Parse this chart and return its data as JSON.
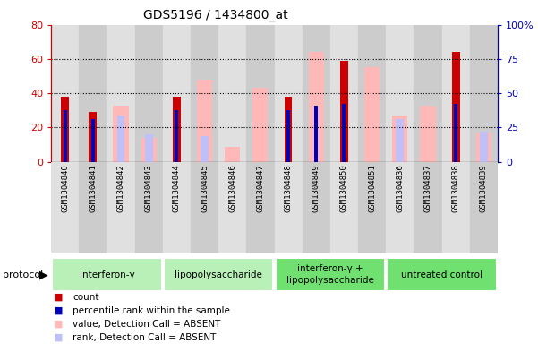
{
  "title": "GDS5196 / 1434800_at",
  "samples": [
    "GSM1304840",
    "GSM1304841",
    "GSM1304842",
    "GSM1304843",
    "GSM1304844",
    "GSM1304845",
    "GSM1304846",
    "GSM1304847",
    "GSM1304848",
    "GSM1304849",
    "GSM1304850",
    "GSM1304851",
    "GSM1304836",
    "GSM1304837",
    "GSM1304838",
    "GSM1304839"
  ],
  "groups": [
    {
      "label": "interferon-γ",
      "start": 0,
      "end": 4,
      "color": "#b8f0b8"
    },
    {
      "label": "lipopolysaccharide",
      "start": 4,
      "end": 8,
      "color": "#b8f0b8"
    },
    {
      "label": "interferon-γ +\nlipopolysaccharide",
      "start": 8,
      "end": 12,
      "color": "#70e070"
    },
    {
      "label": "untreated control",
      "start": 12,
      "end": 16,
      "color": "#70e070"
    }
  ],
  "red_bars": [
    38,
    29,
    0,
    0,
    38,
    0,
    0,
    0,
    38,
    0,
    59,
    0,
    0,
    0,
    64,
    0
  ],
  "blue_bars": [
    38,
    31,
    0,
    0,
    38,
    0,
    0,
    0,
    38,
    41,
    42,
    0,
    0,
    0,
    42,
    0
  ],
  "pink_bars": [
    0,
    0,
    33,
    14,
    0,
    48,
    9,
    43,
    0,
    64,
    0,
    55,
    27,
    33,
    0,
    17
  ],
  "lb_bars": [
    0,
    0,
    34,
    20,
    0,
    19,
    0,
    0,
    0,
    0,
    0,
    0,
    31,
    0,
    0,
    22
  ],
  "left_ylim": [
    0,
    80
  ],
  "right_ylim": [
    0,
    100
  ],
  "left_yticks": [
    0,
    20,
    40,
    60,
    80
  ],
  "right_yticks": [
    0,
    25,
    50,
    75,
    100
  ],
  "right_yticklabels": [
    "0",
    "25",
    "50",
    "75",
    "100%"
  ],
  "col_bg_even": "#e0e0e0",
  "col_bg_odd": "#cccccc",
  "grid_color": "black",
  "red_color": "#cc0000",
  "blue_color": "#0000bb",
  "pink_color": "#ffb8b8",
  "lb_color": "#c0c0f8",
  "legend_items": [
    {
      "color": "#cc0000",
      "label": "count"
    },
    {
      "color": "#0000bb",
      "label": "percentile rank within the sample"
    },
    {
      "color": "#ffb8b8",
      "label": "value, Detection Call = ABSENT"
    },
    {
      "color": "#c0c0f8",
      "label": "rank, Detection Call = ABSENT"
    }
  ]
}
